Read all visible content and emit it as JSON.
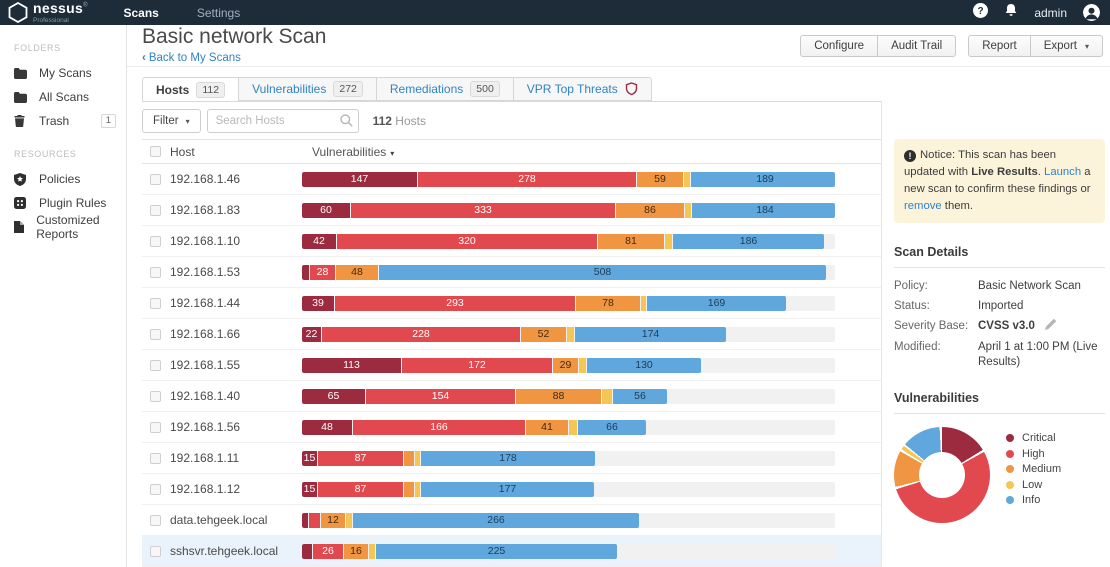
{
  "navbar": {
    "brand": "nessus",
    "brand_reg": "®",
    "brand_sub": "Professional",
    "menu": [
      {
        "label": "Scans",
        "active": true
      },
      {
        "label": "Settings",
        "active": false
      }
    ],
    "user": "admin"
  },
  "header": {
    "title": "Basic network Scan",
    "back_chevron": "‹",
    "back_label": "Back to My Scans",
    "action_groups": [
      [
        {
          "label": "Configure"
        },
        {
          "label": "Audit Trail"
        }
      ],
      [
        {
          "label": "Report"
        },
        {
          "label": "Export",
          "caret": true
        }
      ]
    ]
  },
  "tabs": [
    {
      "label": "Hosts",
      "badge": "112",
      "active": true
    },
    {
      "label": "Vulnerabilities",
      "badge": "272",
      "active": false
    },
    {
      "label": "Remediations",
      "badge": "500",
      "active": false
    },
    {
      "label": "VPR Top Threats",
      "shield_icon": true,
      "active": false
    }
  ],
  "toolbar": {
    "filter_label": "Filter",
    "search_placeholder": "Search Hosts",
    "count": "112",
    "count_unit": "Hosts"
  },
  "severity_colors": {
    "critical": "#9c2b40",
    "high": "#e2494f",
    "medium": "#f09643",
    "low": "#f4c754",
    "info": "#5fa7dc",
    "track": "#f1f1f1"
  },
  "label_colors": {
    "critical": "#ffffff",
    "high": "#ffffff",
    "medium": "#43290e",
    "low": "#5a4a15",
    "info": "#1d3c57"
  },
  "sidebar": {
    "folders_title": "FOLDERS",
    "folders": [
      {
        "label": "My Scans",
        "icon": "folder-icon"
      },
      {
        "label": "All Scans",
        "icon": "folder-icon"
      },
      {
        "label": "Trash",
        "icon": "trash-icon",
        "badge": "1"
      }
    ],
    "resources_title": "RESOURCES",
    "resources": [
      {
        "label": "Policies",
        "icon": "shield-icon"
      },
      {
        "label": "Plugin Rules",
        "icon": "plugin-icon"
      },
      {
        "label": "Customized Reports",
        "icon": "document-icon"
      }
    ]
  },
  "table": {
    "col_host": "Host",
    "col_vulns": "Vulnerabilities",
    "rows": [
      {
        "host": "192.168.1.46",
        "segments": [
          [
            "critical",
            115,
            "147"
          ],
          [
            "high",
            218,
            "278"
          ],
          [
            "medium",
            46,
            "59"
          ],
          [
            "low",
            6,
            ""
          ],
          [
            "info",
            148,
            "189"
          ]
        ]
      },
      {
        "host": "192.168.1.83",
        "segments": [
          [
            "critical",
            48,
            "60"
          ],
          [
            "high",
            264,
            "333"
          ],
          [
            "medium",
            68,
            "86"
          ],
          [
            "low",
            6,
            ""
          ],
          [
            "info",
            146,
            "184"
          ]
        ]
      },
      {
        "host": "192.168.1.10",
        "segments": [
          [
            "critical",
            34,
            "42"
          ],
          [
            "high",
            260,
            "320"
          ],
          [
            "medium",
            66,
            "81"
          ],
          [
            "low",
            7,
            ""
          ],
          [
            "info",
            151,
            "186"
          ]
        ]
      },
      {
        "host": "192.168.1.53",
        "segments": [
          [
            "critical",
            7,
            ""
          ],
          [
            "high",
            25,
            "28"
          ],
          [
            "medium",
            42,
            "48"
          ],
          [
            "info",
            447,
            "508"
          ]
        ]
      },
      {
        "host": "192.168.1.44",
        "segments": [
          [
            "critical",
            32,
            "39"
          ],
          [
            "high",
            240,
            "293"
          ],
          [
            "medium",
            64,
            "78"
          ],
          [
            "low",
            5,
            ""
          ],
          [
            "info",
            139,
            "169"
          ]
        ]
      },
      {
        "host": "192.168.1.66",
        "segments": [
          [
            "critical",
            19,
            "22"
          ],
          [
            "high",
            198,
            "228"
          ],
          [
            "medium",
            45,
            "52"
          ],
          [
            "low",
            7,
            ""
          ],
          [
            "info",
            151,
            "174"
          ]
        ]
      },
      {
        "host": "192.168.1.55",
        "segments": [
          [
            "critical",
            99,
            "113"
          ],
          [
            "high",
            150,
            "172"
          ],
          [
            "medium",
            25,
            "29"
          ],
          [
            "low",
            7,
            ""
          ],
          [
            "info",
            114,
            "130"
          ]
        ]
      },
      {
        "host": "192.168.1.40",
        "segments": [
          [
            "critical",
            63,
            "65"
          ],
          [
            "high",
            149,
            "154"
          ],
          [
            "medium",
            85,
            "88"
          ],
          [
            "low",
            10,
            ""
          ],
          [
            "info",
            54,
            "56"
          ]
        ]
      },
      {
        "host": "192.168.1.56",
        "segments": [
          [
            "critical",
            50,
            "48"
          ],
          [
            "high",
            172,
            "166"
          ],
          [
            "medium",
            42,
            "41"
          ],
          [
            "low",
            8,
            ""
          ],
          [
            "info",
            68,
            "66"
          ]
        ]
      },
      {
        "host": "192.168.1.11",
        "segments": [
          [
            "critical",
            15,
            "15"
          ],
          [
            "high",
            85,
            "87"
          ],
          [
            "medium",
            10,
            ""
          ],
          [
            "low",
            5,
            ""
          ],
          [
            "info",
            174,
            "178"
          ]
        ]
      },
      {
        "host": "192.168.1.12",
        "segments": [
          [
            "critical",
            15,
            "15"
          ],
          [
            "high",
            85,
            "87"
          ],
          [
            "medium",
            10,
            ""
          ],
          [
            "low",
            5,
            ""
          ],
          [
            "info",
            173,
            "177"
          ]
        ]
      },
      {
        "host": "data.tehgeek.local",
        "segments": [
          [
            "critical",
            6,
            ""
          ],
          [
            "high",
            11,
            ""
          ],
          [
            "medium",
            24,
            "12"
          ],
          [
            "low",
            6,
            ""
          ],
          [
            "info",
            286,
            "266"
          ]
        ]
      },
      {
        "host": "sshsvr.tehgeek.local",
        "selected": true,
        "segments": [
          [
            "critical",
            10,
            ""
          ],
          [
            "high",
            30,
            "26"
          ],
          [
            "medium",
            24,
            "16"
          ],
          [
            "low",
            6,
            ""
          ],
          [
            "info",
            241,
            "225"
          ]
        ]
      }
    ]
  },
  "panel": {
    "notice": {
      "parts": [
        {
          "t": "Notice: This scan has been updated with "
        },
        {
          "t": "Live Results",
          "bold": true
        },
        {
          "t": ". "
        },
        {
          "t": "Launch",
          "link": true
        },
        {
          "t": " a new scan to confirm these findings or "
        },
        {
          "t": "remove",
          "link": true
        },
        {
          "t": " them."
        }
      ]
    },
    "scan_details": {
      "title": "Scan Details",
      "rows": [
        {
          "label": "Policy:",
          "value": "Basic Network Scan"
        },
        {
          "label": "Status:",
          "value": "Imported"
        },
        {
          "label": "Severity Base:",
          "value": "CVSS v3.0",
          "bold": true,
          "edit_icon": true
        },
        {
          "label": "Modified:",
          "value": "April 1 at 1:00 PM (Live Results)"
        }
      ]
    },
    "vulnerabilities_title": "Vulnerabilities"
  },
  "chart_data": [
    {
      "type": "pie",
      "donut": true,
      "title": "Vulnerabilities",
      "labels": [
        "Critical",
        "High",
        "Medium",
        "Low",
        "Info"
      ],
      "values_percent": [
        17,
        54,
        13,
        2,
        14
      ],
      "legend_position": "right"
    },
    {
      "type": "bar",
      "stacked": true,
      "orientation": "horizontal",
      "title": "Hosts vulnerabilities",
      "categories": [
        "192.168.1.46",
        "192.168.1.83",
        "192.168.1.10",
        "192.168.1.53",
        "192.168.1.44",
        "192.168.1.66",
        "192.168.1.55",
        "192.168.1.40",
        "192.168.1.56",
        "192.168.1.11",
        "192.168.1.12",
        "data.tehgeek.local",
        "sshsvr.tehgeek.local"
      ],
      "series": [
        {
          "name": "Critical",
          "values": [
            147,
            60,
            42,
            null,
            39,
            22,
            113,
            65,
            48,
            15,
            15,
            null,
            null
          ]
        },
        {
          "name": "High",
          "values": [
            278,
            333,
            320,
            28,
            293,
            228,
            172,
            154,
            166,
            87,
            87,
            null,
            26
          ]
        },
        {
          "name": "Medium",
          "values": [
            59,
            86,
            81,
            48,
            78,
            52,
            29,
            88,
            41,
            null,
            null,
            12,
            16
          ]
        },
        {
          "name": "Low",
          "values": [
            null,
            null,
            null,
            null,
            null,
            null,
            null,
            null,
            null,
            null,
            null,
            null,
            null
          ]
        },
        {
          "name": "Info",
          "values": [
            189,
            184,
            186,
            508,
            169,
            174,
            130,
            56,
            66,
            178,
            177,
            266,
            225
          ]
        }
      ],
      "note": "null = segment visible but count not labeled in UI"
    }
  ]
}
